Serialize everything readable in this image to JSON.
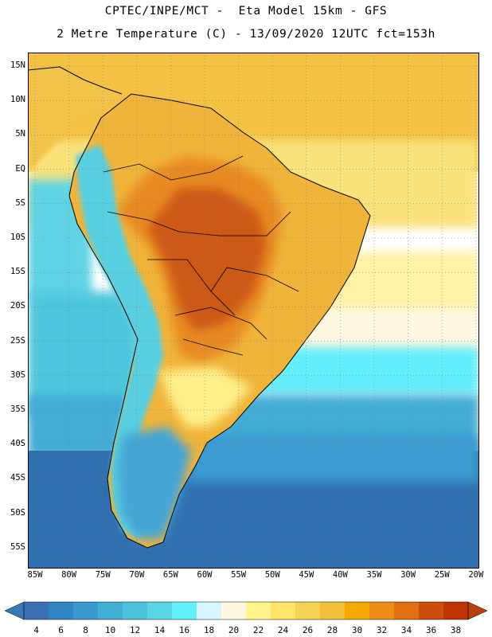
{
  "header": {
    "line1": "CPTEC/INPE/MCT -  Eta Model 15km - GFS",
    "line2": "2 Metre Temperature (C) - 13/09/2020 12UTC fct=153h"
  },
  "map": {
    "lat_labels": [
      "15N",
      "10N",
      "5N",
      "EQ",
      "5S",
      "10S",
      "15S",
      "20S",
      "25S",
      "30S",
      "35S",
      "40S",
      "45S",
      "50S",
      "55S"
    ],
    "lon_labels": [
      "85W",
      "80W",
      "75W",
      "70W",
      "65W",
      "60W",
      "55W",
      "50W",
      "45W",
      "40W",
      "35W",
      "30W",
      "25W",
      "20W"
    ]
  },
  "colorbar": {
    "labels": [
      "4",
      "6",
      "8",
      "10",
      "12",
      "14",
      "16",
      "18",
      "20",
      "22",
      "24",
      "26",
      "28",
      "30",
      "32",
      "34",
      "36",
      "38"
    ],
    "colors": [
      "#3a6fb4",
      "#2f84c4",
      "#3a9ad0",
      "#42aed4",
      "#4cc2dc",
      "#58d6e6",
      "#62f0fa",
      "#d8f6ff",
      "#fff8e2",
      "#fff58c",
      "#ffe468",
      "#f5d454",
      "#f0c03c",
      "#f5a800",
      "#ec8e18",
      "#e07010",
      "#cc4e08",
      "#bd3400"
    ],
    "under_color": "#3a78b8",
    "over_color": "#b8400a"
  }
}
